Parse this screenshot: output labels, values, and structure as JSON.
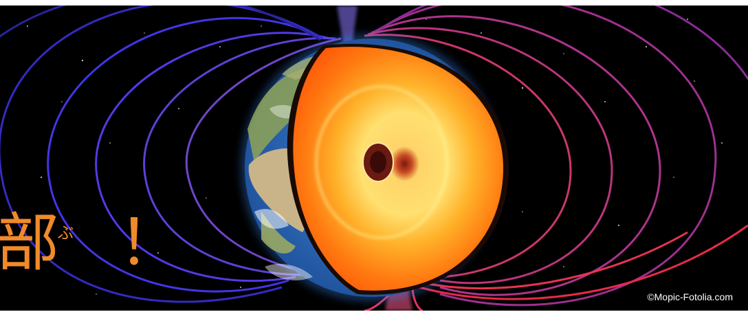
{
  "caption": {
    "kanji": "部",
    "ruby": "ぶ",
    "exclaim": "！"
  },
  "credit": "©Mopic-Fotolia.com",
  "colors": {
    "background": "#000000",
    "caption": "#f08a2a",
    "field_lines_left": "#7a52ff",
    "field_lines_right": "#ff3a6e",
    "core_outer": "#ff7a10",
    "core_inner": "#ffd85a",
    "ocean": "#2d6fc0",
    "land": "#c9b489"
  }
}
